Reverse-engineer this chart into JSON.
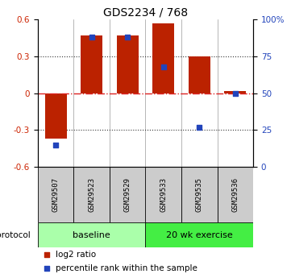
{
  "title": "GDS2234 / 768",
  "samples": [
    "GSM29507",
    "GSM29523",
    "GSM29529",
    "GSM29533",
    "GSM29535",
    "GSM29536"
  ],
  "log2_ratio": [
    -0.37,
    0.47,
    0.47,
    0.57,
    0.3,
    0.02
  ],
  "percentile_rank": [
    15,
    88,
    88,
    68,
    27,
    50
  ],
  "ylim_left": [
    -0.6,
    0.6
  ],
  "ylim_right": [
    0,
    100
  ],
  "yticks_left": [
    -0.6,
    -0.3,
    0.0,
    0.3,
    0.6
  ],
  "ytick_labels_left": [
    "-0.6",
    "-0.3",
    "0",
    "0.3",
    "0.6"
  ],
  "yticks_right": [
    0,
    25,
    50,
    75,
    100
  ],
  "ytick_labels_right": [
    "0",
    "25",
    "50",
    "75",
    "100%"
  ],
  "bar_color": "#bb2200",
  "marker_color": "#2244bb",
  "hline_color": "#dd2222",
  "dotted_color": "#333333",
  "baseline_color": "#aaffaa",
  "exercise_color": "#44ee44",
  "sample_box_color": "#cccccc",
  "protocol_label": "protocol",
  "protocol_groups": [
    {
      "label": "baseline",
      "indices": [
        0,
        1,
        2
      ]
    },
    {
      "label": "20 wk exercise",
      "indices": [
        3,
        4,
        5
      ]
    }
  ],
  "legend_items": [
    {
      "label": "log2 ratio",
      "color": "#bb2200"
    },
    {
      "label": "percentile rank within the sample",
      "color": "#2244bb"
    }
  ],
  "tick_color_left": "#cc2200",
  "tick_color_right": "#2244bb"
}
